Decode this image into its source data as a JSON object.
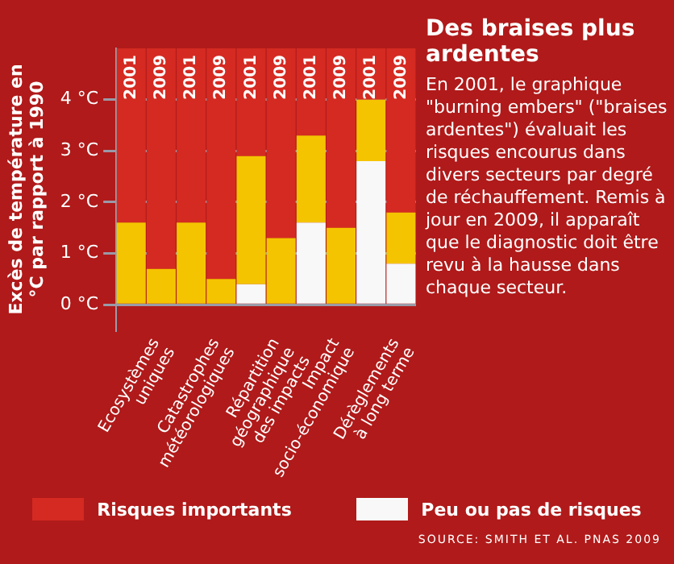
{
  "chart_data": {
    "type": "bar",
    "title": "Des braises plus ardentes",
    "subtitle": "En 2001, le graphique \"burning embers\" (\"braises ardentes\") évaluait les risques encourus dans divers secteurs par degré de réchauffement. Remis à jour en 2009, il apparaît que le diagnostic doit être revu à la hausse dans chaque secteur.",
    "ylabel": "Excès de température en °C par rapport à 1990",
    "categories": [
      null,
      null,
      null,
      null,
      null,
      null,
      null,
      null,
      null,
      null
    ],
    "stacked": true,
    "series": [
      {
        "name": "Peu ou pas de risques",
        "color": "#f8f8f8",
        "values": [
          null,
          null,
          null,
          null,
          0.4,
          null,
          1.6,
          null,
          2.8,
          0.8
        ]
      },
      {
        "color": "#f5c400",
        "values": [
          1.6,
          0.7,
          1.6,
          0.5,
          2.5,
          1.3,
          1.7,
          1.5,
          1.2,
          1.0
        ]
      },
      {
        "name": "Risques importants",
        "color": "#d42a22",
        "values": [
          3.4,
          4.3,
          3.4,
          4.5,
          2.1,
          3.7,
          1.7,
          3.5,
          1.0,
          3.2
        ]
      }
    ],
    "ylim": [
      -0.5,
      5.0
    ],
    "yticks": [
      {
        "value": 0,
        "label": "0 °C"
      },
      {
        "value": 1,
        "label": "1 °C"
      },
      {
        "value": 2,
        "label": "2 °C"
      },
      {
        "value": 3,
        "label": "3 °C"
      },
      {
        "value": 4,
        "label": "4 °C"
      }
    ],
    "grid": "y",
    "legend": "bottom",
    "annotations": [
      "2001",
      "2009",
      "2001",
      "2009",
      "2001",
      "2009",
      "2001",
      "2009",
      "2001",
      "2009",
      "Ecosystèmes uniques",
      "Catastrophes météorologiques",
      "Répartition géographique des impacts",
      "Impact socio-économique",
      "Dérèglements à long terme",
      "SOURCE: SMITH ET AL. PNAS 2009"
    ]
  }
}
